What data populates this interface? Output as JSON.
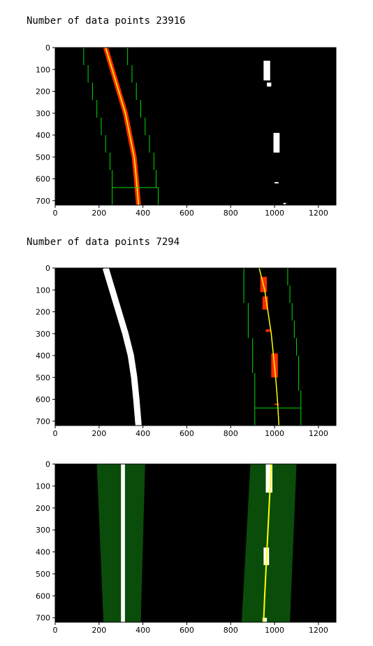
{
  "outputs": [
    {
      "text": "Number of data points 23916"
    },
    {
      "text": "Number of data points 7294"
    }
  ],
  "chart_data": [
    {
      "type": "image",
      "title": "",
      "xlim": [
        0,
        1280
      ],
      "ylim": [
        720,
        0
      ],
      "xticks": [
        "0",
        "200",
        "400",
        "600",
        "800",
        "1000",
        "1200"
      ],
      "yticks": [
        "0",
        "100",
        "200",
        "300",
        "400",
        "500",
        "600",
        "700"
      ],
      "windows": [
        {
          "x1": 130,
          "x2": 330,
          "y1": 0,
          "y2": 80
        },
        {
          "x1": 150,
          "x2": 350,
          "y1": 80,
          "y2": 160
        },
        {
          "x1": 170,
          "x2": 370,
          "y1": 160,
          "y2": 240
        },
        {
          "x1": 190,
          "x2": 390,
          "y1": 240,
          "y2": 320
        },
        {
          "x1": 210,
          "x2": 410,
          "y1": 320,
          "y2": 400
        },
        {
          "x1": 230,
          "x2": 430,
          "y1": 400,
          "y2": 480
        },
        {
          "x1": 250,
          "x2": 450,
          "y1": 480,
          "y2": 560
        },
        {
          "x1": 260,
          "x2": 460,
          "y1": 560,
          "y2": 640
        },
        {
          "x1": 260,
          "x2": 470,
          "y1": 640,
          "y2": 720
        }
      ],
      "fit": [
        [
          230,
          0
        ],
        [
          260,
          100
        ],
        [
          290,
          200
        ],
        [
          320,
          300
        ],
        [
          340,
          400
        ],
        [
          360,
          500
        ],
        [
          370,
          600
        ],
        [
          380,
          720
        ]
      ],
      "colors": {
        "window": "#00dd00",
        "fit": "#ffff00",
        "pixels": "#ff2a00",
        "other_lane": "#ffffff"
      }
    },
    {
      "type": "image",
      "title": "",
      "xlim": [
        0,
        1280
      ],
      "ylim": [
        720,
        0
      ],
      "xticks": [
        "0",
        "200",
        "400",
        "600",
        "800",
        "1000",
        "1200"
      ],
      "yticks": [
        "0",
        "100",
        "200",
        "300",
        "400",
        "500",
        "600",
        "700"
      ],
      "windows": [
        {
          "x1": 860,
          "x2": 1060,
          "y1": 0,
          "y2": 80
        },
        {
          "x1": 860,
          "x2": 1070,
          "y1": 80,
          "y2": 160
        },
        {
          "x1": 880,
          "x2": 1080,
          "y1": 160,
          "y2": 240
        },
        {
          "x1": 880,
          "x2": 1090,
          "y1": 240,
          "y2": 320
        },
        {
          "x1": 900,
          "x2": 1100,
          "y1": 320,
          "y2": 400
        },
        {
          "x1": 900,
          "x2": 1110,
          "y1": 400,
          "y2": 480
        },
        {
          "x1": 910,
          "x2": 1110,
          "y1": 480,
          "y2": 560
        },
        {
          "x1": 910,
          "x2": 1120,
          "y1": 560,
          "y2": 640
        },
        {
          "x1": 910,
          "x2": 1120,
          "y1": 640,
          "y2": 720
        }
      ],
      "fit": [
        [
          930,
          0
        ],
        [
          955,
          100
        ],
        [
          970,
          200
        ],
        [
          985,
          300
        ],
        [
          995,
          400
        ],
        [
          1005,
          500
        ],
        [
          1013,
          600
        ],
        [
          1020,
          720
        ]
      ],
      "colors": {
        "window": "#00dd00",
        "fit": "#ffff00",
        "pixels": "#ff2a00",
        "other_lane": "#ffffff"
      }
    },
    {
      "type": "image",
      "title": "",
      "xlim": [
        0,
        1280
      ],
      "ylim": [
        720,
        0
      ],
      "xticks": [
        "0",
        "200",
        "400",
        "600",
        "800",
        "1000",
        "1200"
      ],
      "yticks": [
        "0",
        "100",
        "200",
        "300",
        "400",
        "500",
        "600",
        "700"
      ],
      "left_band": [
        [
          190,
          0
        ],
        [
          410,
          0
        ],
        [
          390,
          720
        ],
        [
          220,
          720
        ]
      ],
      "right_band": [
        [
          890,
          0
        ],
        [
          1100,
          0
        ],
        [
          1070,
          720
        ],
        [
          850,
          720
        ]
      ],
      "fit": [
        [
          985,
          0
        ],
        [
          980,
          100
        ],
        [
          975,
          200
        ],
        [
          970,
          300
        ],
        [
          965,
          400
        ],
        [
          960,
          500
        ],
        [
          955,
          600
        ],
        [
          950,
          720
        ]
      ],
      "colors": {
        "band": "#0a4d0a",
        "fit": "#ffff00",
        "lane": "#ffffff"
      }
    }
  ]
}
